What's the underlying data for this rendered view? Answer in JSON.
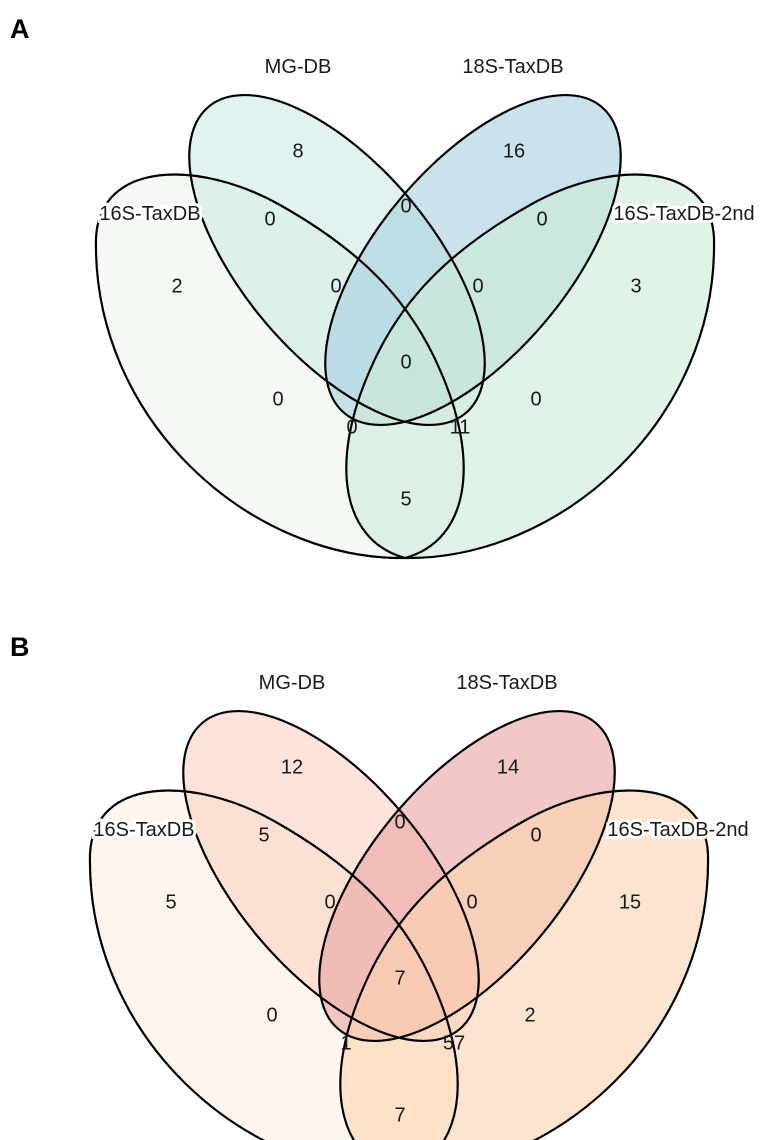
{
  "panels": [
    {
      "id": "A",
      "letter": "A",
      "sets": [
        {
          "key": "s16",
          "label": "16S-TaxDB",
          "color": "#eef7ec"
        },
        {
          "key": "mg",
          "label": "MG-DB",
          "color": "#cfebe6"
        },
        {
          "key": "s18",
          "label": "18S-TaxDB",
          "color": "#a8d0e0"
        },
        {
          "key": "s16b",
          "label": "16S-TaxDB-2nd",
          "color": "#cdebd8"
        }
      ],
      "regions": {
        "s16": "2",
        "mg": "8",
        "s18": "16",
        "s16b": "3",
        "s16_mg": "0",
        "mg_s18": "0",
        "s18_s16b": "0",
        "s16_mg_s18": "0",
        "mg_s18_s16b": "0",
        "all": "0",
        "s16_s18": "0",
        "s16_s18_s16b": "0",
        "s16_mg_s16b": "11",
        "mg_s16b": "0",
        "s16_s16b": "5"
      }
    },
    {
      "id": "B",
      "letter": "B",
      "sets": [
        {
          "key": "s16",
          "label": "16S-TaxDB",
          "color": "#fdf0e4"
        },
        {
          "key": "mg",
          "label": "MG-DB",
          "color": "#fbd2c4"
        },
        {
          "key": "s18",
          "label": "18S-TaxDB",
          "color": "#e9a7a3"
        },
        {
          "key": "s16b",
          "label": "16S-TaxDB-2nd",
          "color": "#fbd4b2"
        }
      ],
      "regions": {
        "s16": "5",
        "mg": "12",
        "s18": "14",
        "s16b": "15",
        "s16_mg": "5",
        "mg_s18": "0",
        "s18_s16b": "0",
        "s16_mg_s18": "0",
        "mg_s18_s16b": "0",
        "all": "7",
        "s16_s18": "0",
        "s16_s18_s16b": "1",
        "s16_mg_s16b": "57",
        "mg_s16b": "2",
        "s16_s16b": "7"
      }
    }
  ]
}
